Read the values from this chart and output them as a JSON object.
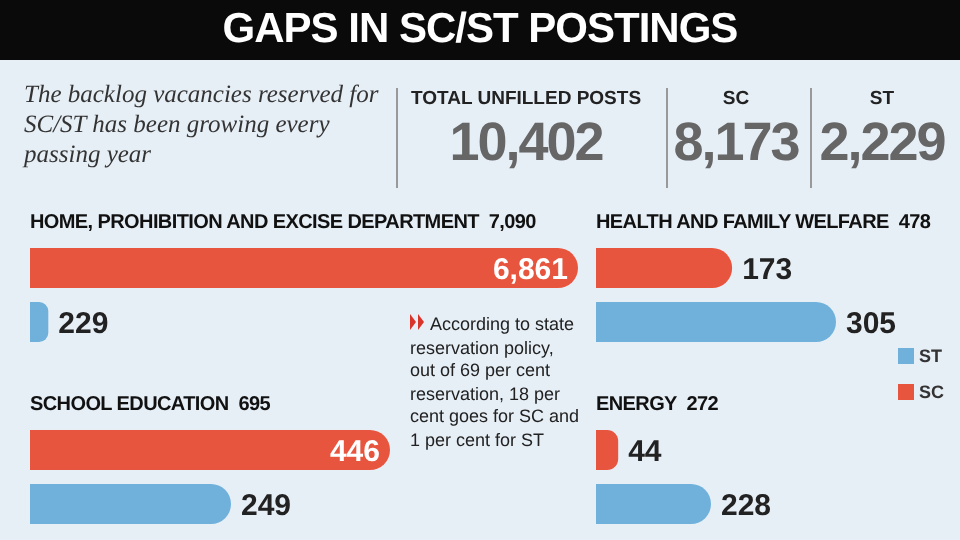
{
  "chart_data": [
    {
      "type": "other",
      "title": "GAPS IN SC/ST POSTINGS",
      "subtitle": "The backlog vacancies reserved for SC/ST has been growing every passing year",
      "categories": [
        "TOTAL UNFILLED POSTS",
        "SC",
        "ST"
      ],
      "value_labels": [
        "10,402",
        "8,173",
        "2,229"
      ],
      "annotations": [
        "According to state reservation policy, out of 69 per cent reservation, 18 per cent goes for SC and 1 per cent for ST"
      ]
    },
    {
      "type": "bar",
      "orientation": "horizontal",
      "title": "HOME, PROHIBITION AND EXCISE DEPARTMENT  7,090",
      "categories": [
        null
      ],
      "series": [
        {
          "color": "#e8553f",
          "values": [
            6861
          ],
          "value_labels": [
            "6,861"
          ]
        },
        {
          "color": "#6fb1da",
          "values": [
            229
          ],
          "value_labels": [
            "229"
          ]
        }
      ],
      "data_labels": true,
      "tick_labels": false
    },
    {
      "type": "bar",
      "orientation": "horizontal",
      "title": "SCHOOL EDUCATION  695",
      "categories": [
        null
      ],
      "series": [
        {
          "color": "#e8553f",
          "values": [
            446
          ],
          "value_labels": [
            "446"
          ]
        },
        {
          "color": "#6fb1da",
          "values": [
            249
          ],
          "value_labels": [
            "249"
          ]
        }
      ],
      "data_labels": true,
      "tick_labels": false
    },
    {
      "type": "bar",
      "orientation": "horizontal",
      "title": "HEALTH AND FAMILY WELFARE  478",
      "categories": [
        null
      ],
      "series": [
        {
          "color": "#e8553f",
          "values": [
            173
          ],
          "value_labels": [
            "173"
          ]
        },
        {
          "color": "#6fb1da",
          "values": [
            305
          ],
          "value_labels": [
            "305"
          ]
        }
      ],
      "data_labels": true,
      "tick_labels": false
    },
    {
      "type": "bar",
      "orientation": "horizontal",
      "title": "ENERGY  272",
      "categories": [
        null
      ],
      "series": [
        {
          "name": "SC",
          "color": "#e8553f",
          "values": [
            44
          ],
          "value_labels": [
            "44"
          ]
        },
        {
          "name": "ST",
          "color": "#6fb1da",
          "values": [
            228
          ],
          "value_labels": [
            "228"
          ]
        }
      ],
      "data_labels": true,
      "tick_labels": false,
      "legend": "right"
    }
  ]
}
